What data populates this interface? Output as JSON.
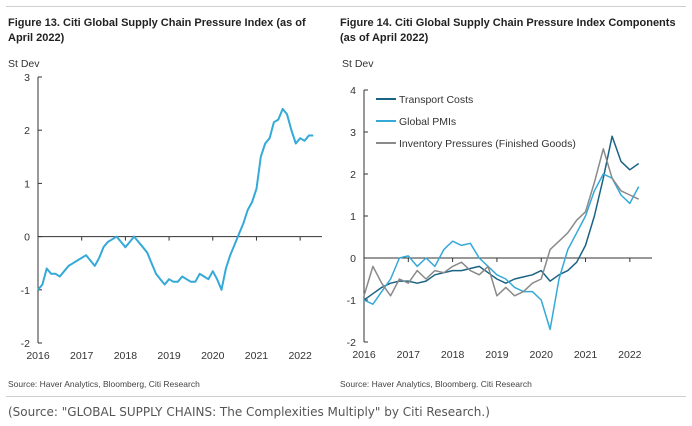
{
  "caption": "(Source: \"GLOBAL SUPPLY CHAINS: The Complexities Multiply\" by Citi Research.)",
  "colors": {
    "dark_blue": "#1b6383",
    "light_blue": "#35a9d7",
    "gray": "#8a8a8a"
  },
  "chart_data": [
    {
      "type": "line",
      "title": "Figure 13. Citi Global Supply Chain Pressure Index (as of April 2022)",
      "ylabel": "St Dev",
      "source": "Source: Haver Analytics, Bloomberg, Citi Research",
      "ylim": [
        -2,
        3
      ],
      "yticks": [
        "3",
        "2",
        "1",
        "0",
        "-1",
        "-2"
      ],
      "xlim": [
        2016,
        2022.5
      ],
      "xticks": [
        "2016",
        "2017",
        "2018",
        "2019",
        "2020",
        "2021",
        "2022"
      ],
      "series": [
        {
          "color": "#35a9d7",
          "x": [
            2016.0,
            2016.1,
            2016.2,
            2016.3,
            2016.4,
            2016.5,
            2016.6,
            2016.7,
            2016.8,
            2016.9,
            2017.0,
            2017.1,
            2017.2,
            2017.3,
            2017.4,
            2017.5,
            2017.6,
            2017.7,
            2017.8,
            2017.9,
            2018.0,
            2018.1,
            2018.2,
            2018.3,
            2018.4,
            2018.5,
            2018.6,
            2018.7,
            2018.8,
            2018.9,
            2019.0,
            2019.1,
            2019.2,
            2019.3,
            2019.4,
            2019.5,
            2019.6,
            2019.7,
            2019.8,
            2019.9,
            2020.0,
            2020.1,
            2020.2,
            2020.3,
            2020.4,
            2020.5,
            2020.6,
            2020.7,
            2020.8,
            2020.9,
            2021.0,
            2021.1,
            2021.2,
            2021.3,
            2021.4,
            2021.5,
            2021.6,
            2021.7,
            2021.8,
            2021.9,
            2022.0,
            2022.1,
            2022.2,
            2022.3
          ],
          "y": [
            -1.0,
            -0.9,
            -0.6,
            -0.7,
            -0.7,
            -0.75,
            -0.65,
            -0.55,
            -0.5,
            -0.45,
            -0.4,
            -0.35,
            -0.45,
            -0.55,
            -0.4,
            -0.2,
            -0.1,
            -0.05,
            0.0,
            -0.1,
            -0.2,
            -0.1,
            0.0,
            -0.1,
            -0.2,
            -0.3,
            -0.5,
            -0.7,
            -0.8,
            -0.9,
            -0.8,
            -0.85,
            -0.85,
            -0.75,
            -0.8,
            -0.85,
            -0.85,
            -0.7,
            -0.75,
            -0.8,
            -0.65,
            -0.8,
            -1.0,
            -0.6,
            -0.35,
            -0.15,
            0.05,
            0.25,
            0.5,
            0.65,
            0.9,
            1.5,
            1.75,
            1.85,
            2.15,
            2.2,
            2.4,
            2.3,
            2.0,
            1.75,
            1.85,
            1.8,
            1.9,
            1.9
          ]
        }
      ]
    },
    {
      "type": "line",
      "title": "Figure 14. Citi Global Supply Chain Pressure Index Components (as of April 2022)",
      "ylabel": "St Dev",
      "source": "Source: Haver Analytics, Bloomberg. Citi Research",
      "ylim": [
        -2,
        4
      ],
      "yticks": [
        "4",
        "3",
        "2",
        "1",
        "0",
        "-1",
        "-2"
      ],
      "xlim": [
        2016,
        2022.5
      ],
      "xticks": [
        "2016",
        "2017",
        "2018",
        "2019",
        "2020",
        "2021",
        "2022"
      ],
      "legend": "top-left",
      "series": [
        {
          "name": "Transport Costs",
          "color": "#1b6383",
          "x": [
            2016.0,
            2016.2,
            2016.4,
            2016.6,
            2016.8,
            2017.0,
            2017.2,
            2017.4,
            2017.6,
            2017.8,
            2018.0,
            2018.2,
            2018.4,
            2018.6,
            2018.8,
            2019.0,
            2019.2,
            2019.4,
            2019.6,
            2019.8,
            2020.0,
            2020.2,
            2020.4,
            2020.6,
            2020.8,
            2021.0,
            2021.2,
            2021.4,
            2021.6,
            2021.8,
            2022.0,
            2022.2
          ],
          "y": [
            -1.0,
            -0.85,
            -0.7,
            -0.6,
            -0.55,
            -0.55,
            -0.6,
            -0.55,
            -0.4,
            -0.35,
            -0.3,
            -0.3,
            -0.25,
            -0.2,
            -0.35,
            -0.5,
            -0.6,
            -0.5,
            -0.45,
            -0.4,
            -0.3,
            -0.55,
            -0.4,
            -0.3,
            -0.1,
            0.3,
            1.0,
            1.9,
            2.9,
            2.3,
            2.1,
            2.25
          ]
        },
        {
          "name": "Global PMIs",
          "color": "#35a9d7",
          "x": [
            2016.0,
            2016.2,
            2016.4,
            2016.6,
            2016.8,
            2017.0,
            2017.2,
            2017.4,
            2017.6,
            2017.8,
            2018.0,
            2018.2,
            2018.4,
            2018.6,
            2018.8,
            2019.0,
            2019.2,
            2019.4,
            2019.6,
            2019.8,
            2020.0,
            2020.2,
            2020.4,
            2020.6,
            2020.8,
            2021.0,
            2021.2,
            2021.4,
            2021.6,
            2021.8,
            2022.0,
            2022.2
          ],
          "y": [
            -1.0,
            -1.1,
            -0.8,
            -0.5,
            0.0,
            0.05,
            -0.2,
            0.0,
            -0.2,
            0.2,
            0.4,
            0.3,
            0.35,
            0.0,
            -0.2,
            -0.4,
            -0.5,
            -0.7,
            -0.8,
            -0.8,
            -1.0,
            -1.7,
            -0.5,
            0.2,
            0.6,
            1.0,
            1.6,
            2.0,
            1.9,
            1.5,
            1.3,
            1.7
          ]
        },
        {
          "name": "Inventory Pressures (Finished Goods)",
          "color": "#8a8a8a",
          "x": [
            2016.0,
            2016.2,
            2016.4,
            2016.6,
            2016.8,
            2017.0,
            2017.2,
            2017.4,
            2017.6,
            2017.8,
            2018.0,
            2018.2,
            2018.4,
            2018.6,
            2018.8,
            2019.0,
            2019.2,
            2019.4,
            2019.6,
            2019.8,
            2020.0,
            2020.2,
            2020.4,
            2020.6,
            2020.8,
            2021.0,
            2021.2,
            2021.4,
            2021.6,
            2021.8,
            2022.0,
            2022.2
          ],
          "y": [
            -0.9,
            -0.2,
            -0.6,
            -0.9,
            -0.5,
            -0.6,
            -0.3,
            -0.5,
            -0.3,
            -0.35,
            -0.2,
            -0.1,
            -0.3,
            -0.4,
            -0.2,
            -0.9,
            -0.7,
            -0.9,
            -0.8,
            -0.6,
            -0.5,
            0.2,
            0.4,
            0.6,
            0.9,
            1.1,
            1.8,
            2.6,
            1.9,
            1.6,
            1.5,
            1.4
          ]
        }
      ]
    }
  ]
}
